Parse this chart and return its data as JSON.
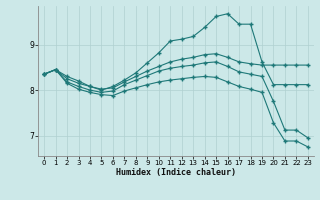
{
  "xlabel": "Humidex (Indice chaleur)",
  "bg_color": "#cce8e8",
  "grid_color": "#b0d0d0",
  "line_color": "#1e7878",
  "xlim": [
    -0.5,
    23.5
  ],
  "ylim": [
    6.55,
    9.85
  ],
  "yticks": [
    7,
    8,
    9
  ],
  "xticks": [
    0,
    1,
    2,
    3,
    4,
    5,
    6,
    7,
    8,
    9,
    10,
    11,
    12,
    13,
    14,
    15,
    16,
    17,
    18,
    19,
    20,
    21,
    22,
    23
  ],
  "series": {
    "line1_x": [
      0,
      1,
      2,
      3,
      4,
      5,
      6,
      7,
      8,
      9,
      10,
      11,
      12,
      13,
      14,
      15,
      16,
      17,
      18,
      19,
      20,
      21,
      22,
      23
    ],
    "line1_y": [
      8.35,
      8.45,
      8.3,
      8.2,
      8.08,
      8.0,
      8.08,
      8.22,
      8.38,
      8.6,
      8.82,
      9.08,
      9.12,
      9.18,
      9.38,
      9.62,
      9.68,
      9.45,
      9.45,
      8.62,
      8.12,
      8.12,
      8.12,
      8.12
    ],
    "line2_x": [
      0,
      1,
      2,
      3,
      4,
      5,
      6,
      7,
      8,
      9,
      10,
      11,
      12,
      13,
      14,
      15,
      16,
      17,
      18,
      19,
      20,
      21,
      22,
      23
    ],
    "line2_y": [
      8.35,
      8.45,
      8.25,
      8.15,
      8.08,
      8.02,
      8.05,
      8.18,
      8.3,
      8.42,
      8.52,
      8.62,
      8.68,
      8.72,
      8.78,
      8.8,
      8.72,
      8.62,
      8.58,
      8.55,
      8.55,
      8.55,
      8.55,
      8.55
    ],
    "line3_x": [
      0,
      1,
      2,
      3,
      4,
      5,
      6,
      7,
      8,
      9,
      10,
      11,
      12,
      13,
      14,
      15,
      16,
      17,
      18,
      19,
      20,
      21,
      22,
      23
    ],
    "line3_y": [
      8.35,
      8.45,
      8.18,
      8.08,
      8.0,
      7.95,
      7.98,
      8.12,
      8.22,
      8.32,
      8.42,
      8.48,
      8.52,
      8.55,
      8.6,
      8.62,
      8.52,
      8.4,
      8.35,
      8.3,
      7.75,
      7.12,
      7.12,
      6.95
    ],
    "line4_x": [
      0,
      1,
      2,
      3,
      4,
      5,
      6,
      7,
      8,
      9,
      10,
      11,
      12,
      13,
      14,
      15,
      16,
      17,
      18,
      19,
      20,
      21,
      22,
      23
    ],
    "line4_y": [
      8.35,
      8.45,
      8.15,
      8.02,
      7.95,
      7.9,
      7.88,
      7.98,
      8.05,
      8.12,
      8.18,
      8.22,
      8.25,
      8.28,
      8.3,
      8.28,
      8.18,
      8.08,
      8.02,
      7.95,
      7.28,
      6.88,
      6.88,
      6.75
    ]
  }
}
